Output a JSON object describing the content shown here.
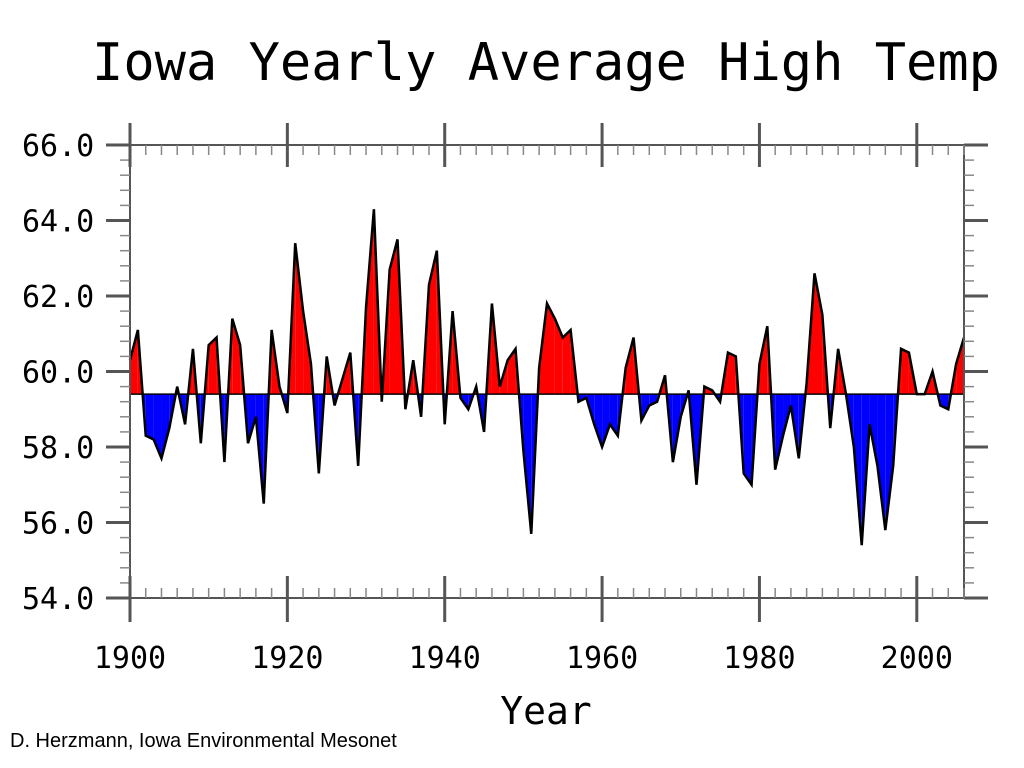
{
  "chart_data": {
    "type": "area",
    "title": "Iowa Yearly Average High Temp",
    "xlabel": "Year",
    "ylabel": "",
    "xlim": [
      1900,
      2006
    ],
    "ylim": [
      54,
      66
    ],
    "baseline": 59.4,
    "x_ticks": [
      1900,
      1920,
      1940,
      1960,
      1980,
      2000
    ],
    "y_ticks": [
      "54.0",
      "56.0",
      "58.0",
      "60.0",
      "62.0",
      "64.0",
      "66.0"
    ],
    "above_color": "#ff0000",
    "below_color": "#0000ff",
    "years": [
      1900,
      1901,
      1902,
      1903,
      1904,
      1905,
      1906,
      1907,
      1908,
      1909,
      1910,
      1911,
      1912,
      1913,
      1914,
      1915,
      1916,
      1917,
      1918,
      1919,
      1920,
      1921,
      1922,
      1923,
      1924,
      1925,
      1926,
      1927,
      1928,
      1929,
      1930,
      1931,
      1932,
      1933,
      1934,
      1935,
      1936,
      1937,
      1938,
      1939,
      1940,
      1941,
      1942,
      1943,
      1944,
      1945,
      1946,
      1947,
      1948,
      1949,
      1950,
      1951,
      1952,
      1953,
      1954,
      1955,
      1956,
      1957,
      1958,
      1959,
      1960,
      1961,
      1962,
      1963,
      1964,
      1965,
      1966,
      1967,
      1968,
      1969,
      1970,
      1971,
      1972,
      1973,
      1974,
      1975,
      1976,
      1977,
      1978,
      1979,
      1980,
      1981,
      1982,
      1983,
      1984,
      1985,
      1986,
      1987,
      1988,
      1989,
      1990,
      1991,
      1992,
      1993,
      1994,
      1995,
      1996,
      1997,
      1998,
      1999,
      2000,
      2001,
      2002,
      2003,
      2004,
      2005,
      2006
    ],
    "values": [
      60.3,
      61.1,
      58.3,
      58.2,
      57.7,
      58.5,
      59.6,
      58.6,
      60.6,
      58.1,
      60.7,
      60.9,
      57.6,
      61.4,
      60.7,
      58.1,
      58.8,
      56.5,
      61.1,
      59.6,
      58.9,
      63.4,
      61.6,
      60.2,
      57.3,
      60.4,
      59.1,
      59.8,
      60.5,
      57.5,
      61.7,
      64.3,
      59.2,
      62.7,
      63.5,
      59.0,
      60.3,
      58.8,
      62.3,
      63.2,
      58.6,
      61.6,
      59.3,
      59.0,
      59.6,
      58.4,
      61.8,
      59.6,
      60.3,
      60.6,
      57.9,
      55.7,
      60.1,
      61.8,
      61.4,
      60.9,
      61.1,
      59.2,
      59.3,
      58.6,
      58.0,
      58.6,
      58.3,
      60.1,
      60.9,
      58.7,
      59.1,
      59.2,
      59.9,
      57.6,
      58.8,
      59.5,
      57.0,
      59.6,
      59.5,
      59.2,
      60.5,
      60.4,
      57.3,
      57.0,
      60.2,
      61.2,
      57.4,
      58.3,
      59.1,
      57.7,
      59.7,
      62.6,
      61.5,
      58.5,
      60.6,
      59.4,
      58.0,
      55.4,
      58.6,
      57.5,
      55.8,
      57.5,
      60.6,
      60.5,
      59.4,
      59.4,
      60.0,
      59.1,
      59.0,
      60.2,
      60.9
    ]
  },
  "credit": "D. Herzmann, Iowa Environmental Mesonet"
}
